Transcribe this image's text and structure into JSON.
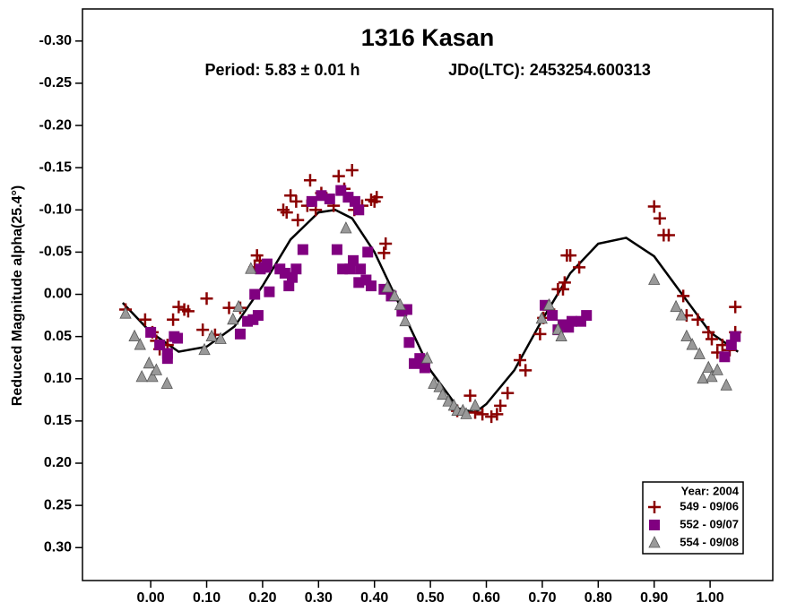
{
  "chart_data": {
    "type": "scatter",
    "title": "1316 Kasan",
    "period": "Period: 5.83 ± 0.01 h",
    "epoch": "JDo(LTC): 2453254.600313",
    "y_label": "Reduced Magnitude alpha(25.4°)",
    "legend_title": "Year: 2004",
    "legend_position": "lower right",
    "y_inverted": true,
    "xlim": [
      -0.122,
      1.112
    ],
    "ylim": [
      -0.338,
      0.339
    ],
    "xticks": [
      {
        "value": 0,
        "label": "0.00"
      },
      {
        "value": 0.1,
        "label": "0.10"
      },
      {
        "value": 0.2,
        "label": "0.20"
      },
      {
        "value": 0.3,
        "label": "0.30"
      },
      {
        "value": 0.4,
        "label": "0.40"
      },
      {
        "value": 0.5,
        "label": "0.50"
      },
      {
        "value": 0.6,
        "label": "0.60"
      },
      {
        "value": 0.7,
        "label": "0.70"
      },
      {
        "value": 0.8,
        "label": "0.80"
      },
      {
        "value": 0.9,
        "label": "0.90"
      },
      {
        "value": 1,
        "label": "1.00"
      }
    ],
    "yticks": [
      {
        "value": -0.3,
        "label": "-0.30"
      },
      -0.25,
      {
        "value": -0.2,
        "label": "-0.20"
      },
      -0.15,
      {
        "value": -0.1,
        "label": "-0.10"
      },
      -0.05,
      {
        "value": 0,
        "label": "0.00"
      },
      0.05,
      {
        "value": 0.1,
        "label": "0.10"
      },
      0.15,
      {
        "value": 0.2,
        "label": "0.20"
      },
      0.25,
      {
        "value": 0.3,
        "label": "0.30"
      }
    ],
    "series": [
      {
        "name": "549 - 09/06",
        "color": "#8b0000",
        "marker": "cross",
        "x": [
          -0.045,
          -0.01,
          0.003,
          0.01,
          0.016,
          0.03,
          0.04,
          0.05,
          0.06,
          0.067,
          0.1,
          0.093,
          0.115,
          0.14,
          0.16,
          0.186,
          0.19,
          0.195,
          0.237,
          0.243,
          0.25,
          0.26,
          0.263,
          0.285,
          0.28,
          0.295,
          0.305,
          0.327,
          0.336,
          0.346,
          0.36,
          0.364,
          0.378,
          0.394,
          0.4,
          0.404,
          0.42,
          0.417,
          0.548,
          0.571,
          0.58,
          0.593,
          0.609,
          0.619,
          0.625,
          0.638,
          0.66,
          0.67,
          0.696,
          0.702,
          0.712,
          0.728,
          0.737,
          0.744,
          0.75,
          0.766,
          0.74,
          0.9,
          0.91,
          0.917,
          0.926,
          0.952,
          0.958,
          0.978,
          0.997,
          1.003,
          1.013,
          1.022,
          1.035,
          1.045,
          1.045
        ],
        "values": [
          0.018,
          0.03,
          0.045,
          0.055,
          0.065,
          0.06,
          0.03,
          0.015,
          0.018,
          0.02,
          0.005,
          0.042,
          0.048,
          0.016,
          0.016,
          -0.032,
          -0.046,
          -0.04,
          -0.1,
          -0.097,
          -0.117,
          -0.11,
          -0.088,
          -0.135,
          -0.105,
          -0.1,
          -0.12,
          -0.105,
          -0.14,
          -0.125,
          -0.147,
          -0.1,
          -0.105,
          -0.112,
          -0.11,
          -0.115,
          -0.06,
          -0.049,
          0.138,
          0.12,
          0.14,
          0.142,
          0.145,
          0.142,
          0.132,
          0.117,
          0.078,
          0.09,
          0.047,
          0.028,
          0.018,
          -0.006,
          -0.006,
          -0.046,
          -0.046,
          -0.032,
          -0.014,
          -0.104,
          -0.09,
          -0.07,
          -0.07,
          0.002,
          0.025,
          0.03,
          0.045,
          0.053,
          0.069,
          0.06,
          0.066,
          0.045,
          0.015
        ]
      },
      {
        "name": "552 - 09/07",
        "color": "#800080",
        "marker": "square",
        "x": [
          0,
          0.016,
          0.03,
          0.03,
          0.042,
          0.048,
          0.16,
          0.173,
          0.183,
          0.192,
          0.186,
          0.196,
          0.205,
          0.208,
          0.212,
          0.231,
          0.24,
          0.247,
          0.253,
          0.26,
          0.272,
          0.288,
          0.305,
          0.32,
          0.333,
          0.34,
          0.343,
          0.353,
          0.356,
          0.362,
          0.365,
          0.372,
          0.375,
          0.372,
          0.385,
          0.388,
          0.394,
          0.417,
          0.43,
          0.449,
          0.458,
          0.462,
          0.471,
          0.481,
          0.49,
          0.705,
          0.718,
          0.728,
          0.737,
          0.747,
          0.753,
          0.769,
          0.779,
          1.026,
          1.038,
          1.045
        ],
        "values": [
          0.045,
          0.06,
          0.07,
          0.076,
          0.05,
          0.052,
          0.047,
          0.032,
          0.03,
          0.025,
          0,
          -0.03,
          -0.032,
          -0.036,
          -0.003,
          -0.03,
          -0.025,
          -0.01,
          -0.02,
          -0.03,
          -0.053,
          -0.11,
          -0.117,
          -0.113,
          -0.053,
          -0.123,
          -0.03,
          -0.115,
          -0.03,
          -0.04,
          -0.11,
          -0.1,
          -0.03,
          -0.014,
          -0.017,
          -0.05,
          -0.01,
          -0.006,
          0.002,
          0.02,
          0.018,
          0.057,
          0.082,
          0.076,
          0.087,
          0.013,
          0.025,
          0.042,
          0.036,
          0.039,
          0.032,
          0.032,
          0.025,
          0.074,
          0.06,
          0.05
        ]
      },
      {
        "name": "554 - 09/08",
        "color": "#999999",
        "marker": "triangle",
        "x": [
          -0.045,
          -0.029,
          -0.019,
          -0.016,
          -0.003,
          0.003,
          0.01,
          0.029,
          0.096,
          0.109,
          0.125,
          0.147,
          0.157,
          0.179,
          0.349,
          0.423,
          0.436,
          0.446,
          0.455,
          0.494,
          0.506,
          0.516,
          0.522,
          0.532,
          0.542,
          0.548,
          0.558,
          0.564,
          0.58,
          0.699,
          0.712,
          0.728,
          0.734,
          0.9,
          0.939,
          0.949,
          0.958,
          0.968,
          0.981,
          0.987,
          0.997,
          1.003,
          1.013,
          1.029
        ],
        "values": [
          0.023,
          0.05,
          0.06,
          0.098,
          0.082,
          0.098,
          0.09,
          0.106,
          0.066,
          0.05,
          0.053,
          0.03,
          0.015,
          -0.03,
          -0.078,
          -0.008,
          0.002,
          0.013,
          0.032,
          0.076,
          0.106,
          0.11,
          0.119,
          0.127,
          0.132,
          0.138,
          0.138,
          0.142,
          0.132,
          0.029,
          0.013,
          0.042,
          0.05,
          -0.017,
          0.015,
          0.025,
          0.05,
          0.06,
          0.071,
          0.1,
          0.087,
          0.098,
          0.09,
          0.108
        ]
      }
    ],
    "curve": {
      "color": "#000000",
      "x": [
        -0.05,
        0,
        0.05,
        0.1,
        0.15,
        0.2,
        0.25,
        0.3,
        0.33,
        0.36,
        0.4,
        0.45,
        0.5,
        0.55,
        0.58,
        0.6,
        0.65,
        0.7,
        0.75,
        0.8,
        0.85,
        0.9,
        0.95,
        1,
        1.05
      ],
      "values": [
        0.01,
        0.045,
        0.068,
        0.062,
        0.038,
        -0.01,
        -0.065,
        -0.097,
        -0.1,
        -0.09,
        -0.05,
        0.02,
        0.09,
        0.135,
        0.14,
        0.13,
        0.09,
        0.03,
        -0.025,
        -0.06,
        -0.067,
        -0.045,
        0,
        0.045,
        0.068
      ]
    }
  }
}
